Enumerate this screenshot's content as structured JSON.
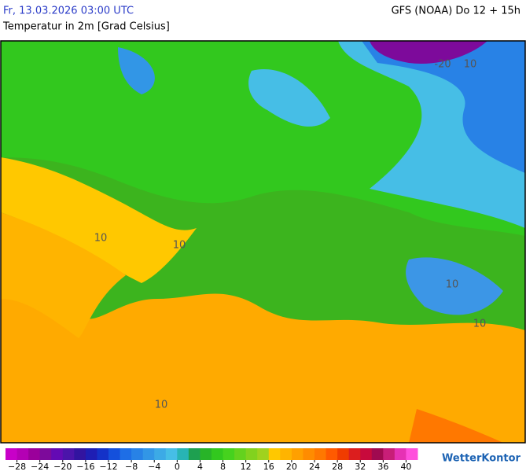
{
  "header": {
    "datetime": "Fr, 13.03.2026 03:00 UTC",
    "model": "GFS (NOAA) Do 12 + 15h",
    "title": "Temperatur in 2m [Grad Celsius]"
  },
  "map": {
    "contour_labels": [
      "10",
      "10",
      "10",
      "-20",
      "10",
      "10",
      "10"
    ]
  },
  "legend": {
    "min": -30,
    "max": 42,
    "colors": [
      "#c800c8",
      "#b400b4",
      "#9b009b",
      "#7d0a9b",
      "#640ab4",
      "#4b14aa",
      "#3214a0",
      "#1e1eb4",
      "#1432c8",
      "#1450dc",
      "#1e6ee6",
      "#2882e6",
      "#3296e6",
      "#3caae6",
      "#46bee6",
      "#28b4b4",
      "#1ea050",
      "#28b428",
      "#32c81e",
      "#46d21e",
      "#64d21e",
      "#82d21e",
      "#a0d21e",
      "#ffc800",
      "#ffb400",
      "#ffa000",
      "#ff8c00",
      "#ff7800",
      "#ff5a00",
      "#f03c00",
      "#dc1e1e",
      "#c80a3c",
      "#a00a50",
      "#c81e78",
      "#e632b4",
      "#ff50dc"
    ],
    "ticks": [
      {
        "value": -28,
        "label": "−28"
      },
      {
        "value": -24,
        "label": "−24"
      },
      {
        "value": -20,
        "label": "−20"
      },
      {
        "value": -16,
        "label": "−16"
      },
      {
        "value": -12,
        "label": "−12"
      },
      {
        "value": -8,
        "label": "−8"
      },
      {
        "value": -4,
        "label": "−4"
      },
      0,
      4,
      8,
      12,
      16,
      20,
      24,
      28,
      32,
      36,
      40
    ]
  },
  "logo": "WetterKontor"
}
